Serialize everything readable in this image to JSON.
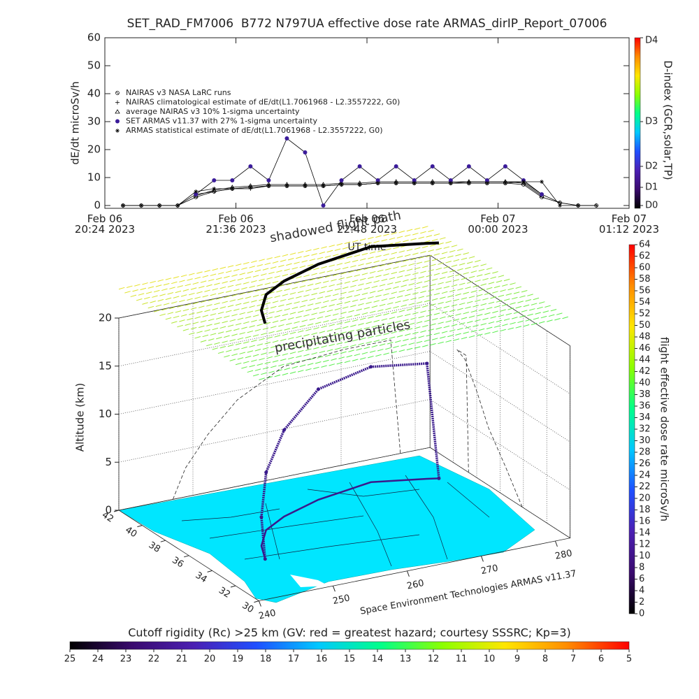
{
  "chart_data": [
    {
      "type": "line",
      "title": "SET_RAD_FM7006  B772 N797UA effective dose rate ARMAS_dirIP_Report_07006",
      "xlabel": "UT time",
      "ylabel": "dE/dt microSv/h",
      "xlim": [
        "2023-02-06 20:24",
        "2023-02-07 01:12"
      ],
      "xticks": [
        {
          "value": "2023-02-06 20:24",
          "label": "Feb 06\n20:24 2023"
        },
        {
          "value": "2023-02-06 21:36",
          "label": "Feb 06\n21:36 2023"
        },
        {
          "value": "2023-02-06 22:48",
          "label": "Feb 06\n22:48 2023"
        },
        {
          "value": "2023-02-07 00:00",
          "label": "Feb 07\n00:00 2023"
        },
        {
          "value": "2023-02-07 01:12",
          "label": "Feb 07\n01:12 2023"
        }
      ],
      "ylim": [
        -1,
        60
      ],
      "yticks": [
        0,
        10,
        20,
        30,
        40,
        50,
        60
      ],
      "x": [
        "2023-02-06 20:34",
        "2023-02-06 20:44",
        "2023-02-06 20:54",
        "2023-02-06 21:04",
        "2023-02-06 21:14",
        "2023-02-06 21:24",
        "2023-02-06 21:34",
        "2023-02-06 21:44",
        "2023-02-06 21:54",
        "2023-02-06 22:04",
        "2023-02-06 22:14",
        "2023-02-06 22:24",
        "2023-02-06 22:34",
        "2023-02-06 22:44",
        "2023-02-06 22:54",
        "2023-02-06 23:04",
        "2023-02-06 23:14",
        "2023-02-06 23:24",
        "2023-02-06 23:34",
        "2023-02-06 23:44",
        "2023-02-06 23:54",
        "2023-02-07 00:04",
        "2023-02-07 00:14",
        "2023-02-07 00:24",
        "2023-02-07 00:34",
        "2023-02-07 00:44",
        "2023-02-07 00:54",
        "2023-02-07 01:04"
      ],
      "series": [
        {
          "name": "NAIRAS v3 NASA LaRC runs",
          "color": "#000000",
          "marker": "circle-x",
          "values": [
            0,
            0,
            0,
            0,
            3,
            5,
            6,
            6.5,
            7,
            7,
            7,
            7,
            7.5,
            7.5,
            8,
            8,
            8,
            8,
            8,
            8,
            8,
            8,
            7.5,
            3,
            1,
            0,
            0,
            null
          ]
        },
        {
          "name": "NAIRAS climatological estimate of dE/dt(L1.7061968 - L2.3557222, G0)",
          "color": "#000000",
          "marker": "plus",
          "values": [
            0,
            0,
            0,
            0,
            4,
            5,
            6,
            6,
            7,
            7,
            7,
            7,
            7.5,
            7.5,
            8,
            8,
            8,
            8,
            8,
            8.5,
            8.5,
            8.5,
            8.5,
            4,
            1,
            0,
            0,
            null
          ]
        },
        {
          "name": "average NAIRAS v3 10% 1-sigma uncertainty",
          "color": "#000000",
          "marker": "triangle",
          "values": [
            null,
            null,
            null,
            null,
            3.5,
            5.5,
            6.5,
            7,
            7.5,
            7.5,
            7.5,
            7.5,
            8,
            8,
            8.5,
            8.5,
            8.5,
            8.5,
            8.5,
            8.5,
            8.5,
            8.5,
            8,
            3.5,
            null,
            null,
            null,
            null
          ]
        },
        {
          "name": "SET ARMAS v11.37 with 27% 1-sigma uncertainty",
          "color": "#3b1c9a",
          "marker": "dot",
          "values": [
            null,
            null,
            null,
            null,
            4,
            9,
            9,
            14,
            9,
            24,
            19,
            0,
            9,
            14,
            9,
            14,
            9,
            14,
            9,
            14,
            9,
            14,
            9,
            4,
            null,
            null,
            null,
            null
          ]
        },
        {
          "name": "ARMAS statistical estimate of dE/dt(L1.7061968 - L2.3557222, G0)",
          "color": "#000000",
          "marker": "asterisk",
          "values": [
            0,
            0,
            0,
            0,
            5,
            6,
            6,
            6.5,
            7,
            7,
            7,
            7,
            7.5,
            7.5,
            8,
            8,
            8,
            8,
            8,
            8,
            8,
            8,
            8.5,
            8.5,
            0,
            0,
            null,
            null
          ]
        }
      ],
      "y2label": "D-index (GCR,solar,TP)",
      "y2lim": [
        -1,
        60
      ],
      "y2ticks": [
        {
          "value": 0,
          "label": "D0"
        },
        {
          "value": 6.5,
          "label": "D1"
        },
        {
          "value": 14,
          "label": "D2"
        },
        {
          "value": 30,
          "label": "D3"
        },
        {
          "value": 60,
          "label": "D4"
        }
      ],
      "colormap": [
        "#000000",
        "#3a0a6e",
        "#4b1fb3",
        "#1f4fff",
        "#00c8ff",
        "#00ff8a",
        "#8cff00",
        "#ffe600",
        "#ff8c00",
        "#ff0000"
      ]
    },
    {
      "type": "surface3d",
      "zlabel": "Altitude (km)",
      "zlim": [
        0,
        20
      ],
      "zticks": [
        0,
        5,
        10,
        15,
        20
      ],
      "ylim": [
        30,
        42
      ],
      "yticks": [
        42,
        40,
        38,
        36,
        34,
        32,
        30
      ],
      "xlim": [
        240,
        282
      ],
      "xticks": [
        240,
        250,
        260,
        270,
        280
      ],
      "annotations": [
        "shadowed flight path",
        "precipitating particles"
      ],
      "credit": "Space Environment Technologies ARMAS v11.37",
      "flight_path": {
        "color": "#3a1a8c",
        "lat": [
          34.1,
          35.5,
          37,
          38,
          39,
          39.7,
          38.9,
          38.7
        ],
        "lon": [
          247.3,
          249,
          252,
          256,
          262.2,
          270.4,
          276.7,
          278
        ],
        "alt": [
          0,
          3,
          6,
          9,
          11.5,
          12,
          12,
          0
        ]
      }
    },
    {
      "type": "colorbar",
      "orientation": "vertical",
      "label": "flight effective dose rate microSv/h",
      "ylim": [
        0,
        64
      ],
      "yticks": [
        0,
        2,
        4,
        6,
        8,
        10,
        12,
        14,
        16,
        18,
        20,
        22,
        24,
        26,
        28,
        30,
        32,
        34,
        36,
        38,
        40,
        42,
        44,
        46,
        48,
        50,
        52,
        54,
        56,
        58,
        60,
        62,
        64
      ],
      "colormap": [
        "#000000",
        "#3a0a6e",
        "#4b1fb3",
        "#1f4fff",
        "#00c8ff",
        "#00ff8a",
        "#8cff00",
        "#ffe600",
        "#ff8c00",
        "#ff0000"
      ]
    },
    {
      "type": "colorbar",
      "orientation": "horizontal",
      "label": "Cutoff rigidity (Rc) >25 km (GV: red = greatest hazard; courtesy SSSRC; Kp=3)",
      "xlim": [
        25,
        5
      ],
      "xticks": [
        25,
        24,
        23,
        22,
        21,
        20,
        19,
        18,
        17,
        16,
        15,
        14,
        13,
        12,
        11,
        10,
        9,
        8,
        7,
        6,
        5
      ],
      "colormap": [
        "#000000",
        "#3a0a6e",
        "#4b1fb3",
        "#1f4fff",
        "#00c8ff",
        "#00ff8a",
        "#8cff00",
        "#ffe600",
        "#ff8c00",
        "#ff0000"
      ]
    }
  ]
}
